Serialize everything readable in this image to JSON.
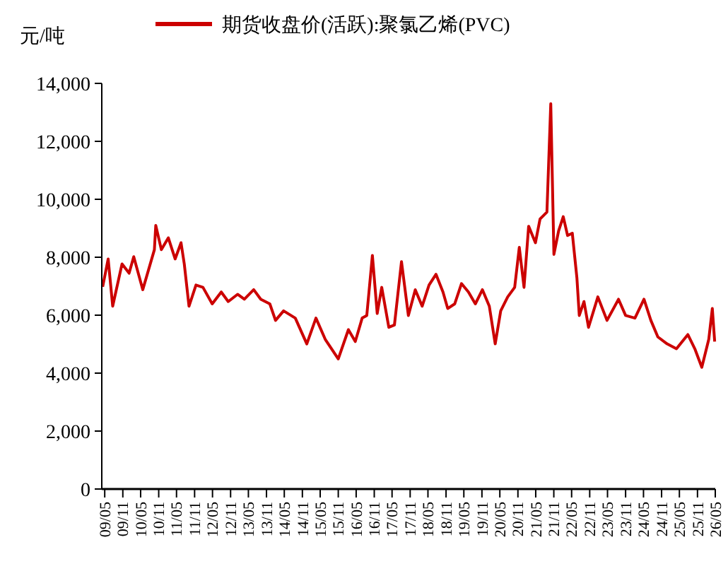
{
  "chart_data": {
    "type": "line",
    "ylabel": "元/吨",
    "legend": "top",
    "x": [
      "2009-04-10",
      "2009-06-05",
      "2009-07-21",
      "2009-10-24",
      "2010-01-04",
      "2010-02-20",
      "2010-05-23",
      "2010-09-18",
      "2010-10-02",
      "2010-11-28",
      "2011-02-07",
      "2011-04-17",
      "2011-06-16",
      "2011-07-19",
      "2011-09-05",
      "2011-11-15",
      "2012-01-25",
      "2012-04-28",
      "2012-07-29",
      "2012-10-08",
      "2013-01-11",
      "2013-03-21",
      "2013-06-24",
      "2013-09-04",
      "2013-12-05",
      "2014-02-01",
      "2014-04-24",
      "2014-08-21",
      "2014-12-16",
      "2015-03-19",
      "2015-06-21",
      "2015-11-01",
      "2016-02-12",
      "2016-04-22",
      "2016-07-01",
      "2016-08-17",
      "2016-10-13",
      "2016-12-01",
      "2017-01-16",
      "2017-03-29",
      "2017-05-25",
      "2017-08-05",
      "2017-10-14",
      "2017-12-23",
      "2018-03-03",
      "2018-05-12",
      "2018-07-22",
      "2018-10-01",
      "2018-11-18",
      "2019-01-28",
      "2019-04-07",
      "2019-06-17",
      "2019-08-26",
      "2019-11-06",
      "2020-01-15",
      "2020-03-15",
      "2020-05-10",
      "2020-07-20",
      "2020-09-29",
      "2020-11-15",
      "2021-01-02",
      "2021-02-18",
      "2021-04-28",
      "2021-06-14",
      "2021-08-23",
      "2021-10-01",
      "2021-11-02",
      "2021-12-20",
      "2022-02-05",
      "2022-03-21",
      "2022-05-08",
      "2022-06-24",
      "2022-07-18",
      "2022-09-04",
      "2022-10-20",
      "2023-01-23",
      "2023-04-26",
      "2023-08-21",
      "2023-11-01",
      "2024-02-04",
      "2024-05-06",
      "2024-07-15",
      "2024-09-24",
      "2024-12-27",
      "2025-04-01",
      "2025-07-26",
      "2025-10-05",
      "2025-12-15",
      "2026-02-24",
      "2026-04-01",
      "2026-04-25"
    ],
    "series": [
      {
        "name": "期货收盘价(活跃):聚氯乙烯(PVC)",
        "color": "#cc0000",
        "values": [
          6980,
          7940,
          6310,
          7770,
          7450,
          8020,
          6880,
          8260,
          9100,
          8260,
          8670,
          7940,
          8500,
          7770,
          6310,
          7040,
          6960,
          6390,
          6800,
          6470,
          6720,
          6550,
          6880,
          6550,
          6390,
          5820,
          6150,
          5900,
          5010,
          5900,
          5170,
          4490,
          5500,
          5090,
          5900,
          5990,
          8060,
          6060,
          6960,
          5580,
          5660,
          7850,
          5990,
          6880,
          6310,
          7040,
          7410,
          6800,
          6230,
          6390,
          7090,
          6800,
          6390,
          6880,
          6310,
          5010,
          6150,
          6630,
          6960,
          8340,
          6960,
          9070,
          8500,
          9320,
          9560,
          13300,
          8100,
          8910,
          9400,
          8750,
          8830,
          7280,
          5990,
          6470,
          5580,
          6630,
          5820,
          6550,
          5990,
          5900,
          6550,
          5820,
          5250,
          5010,
          4840,
          5330,
          4840,
          4200,
          5170,
          6230,
          5090
        ]
      }
    ],
    "xlim": [
      "2009-04",
      "2026-05"
    ],
    "xticks": [
      {
        "value": "2009-05",
        "label": "09/05"
      },
      {
        "value": "2009-11",
        "label": "09/11"
      },
      {
        "value": "2010-05",
        "label": "10/05"
      },
      {
        "value": "2010-11",
        "label": "10/11"
      },
      {
        "value": "2011-05",
        "label": "11/05"
      },
      {
        "value": "2011-11",
        "label": "11/11"
      },
      {
        "value": "2012-05",
        "label": "12/05"
      },
      {
        "value": "2012-11",
        "label": "12/11"
      },
      {
        "value": "2013-05",
        "label": "13/05"
      },
      {
        "value": "2013-11",
        "label": "13/11"
      },
      {
        "value": "2014-05",
        "label": "14/05"
      },
      {
        "value": "2014-11",
        "label": "14/11"
      },
      {
        "value": "2015-05",
        "label": "15/05"
      },
      {
        "value": "2015-11",
        "label": "15/11"
      },
      {
        "value": "2016-05",
        "label": "16/05"
      },
      {
        "value": "2016-11",
        "label": "16/11"
      },
      {
        "value": "2017-05",
        "label": "17/05"
      },
      {
        "value": "2017-11",
        "label": "17/11"
      },
      {
        "value": "2018-05",
        "label": "18/05"
      },
      {
        "value": "2018-11",
        "label": "18/11"
      },
      {
        "value": "2019-05",
        "label": "19/05"
      },
      {
        "value": "2019-11",
        "label": "19/11"
      },
      {
        "value": "2020-05",
        "label": "20/05"
      },
      {
        "value": "2020-11",
        "label": "20/11"
      },
      {
        "value": "2021-05",
        "label": "21/05"
      },
      {
        "value": "2021-11",
        "label": "21/11"
      },
      {
        "value": "2022-05",
        "label": "22/05"
      },
      {
        "value": "2022-11",
        "label": "22/11"
      },
      {
        "value": "2023-05",
        "label": "23/05"
      },
      {
        "value": "2023-11",
        "label": "23/11"
      },
      {
        "value": "2024-05",
        "label": "24/05"
      },
      {
        "value": "2024-11",
        "label": "24/11"
      },
      {
        "value": "2025-05",
        "label": "25/05"
      },
      {
        "value": "2025-11",
        "label": "25/11"
      },
      {
        "value": "2026-05",
        "label": "26/05"
      }
    ],
    "ylim": [
      0,
      14000
    ],
    "yticks": [
      {
        "value": 0,
        "label": "0"
      },
      {
        "value": 2000,
        "label": "2,000"
      },
      {
        "value": 4000,
        "label": "4,000"
      },
      {
        "value": 6000,
        "label": "6,000"
      },
      {
        "value": 8000,
        "label": "8,000"
      },
      {
        "value": 10000,
        "label": "10,000"
      },
      {
        "value": 12000,
        "label": "12,000"
      },
      {
        "value": 14000,
        "label": "14,000"
      }
    ],
    "grid": false,
    "line_style": "solid",
    "marker": "none"
  }
}
